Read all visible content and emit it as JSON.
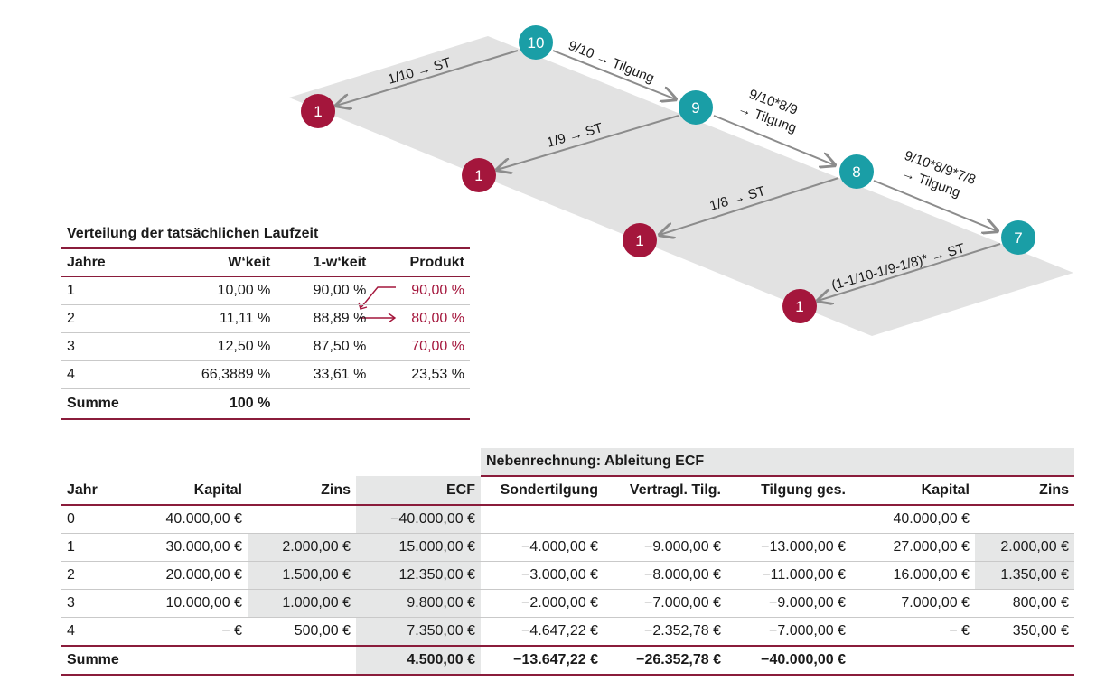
{
  "diagram": {
    "nodes": [
      {
        "label": "10",
        "kind": "teal"
      },
      {
        "label": "9",
        "kind": "teal"
      },
      {
        "label": "8",
        "kind": "teal"
      },
      {
        "label": "7",
        "kind": "teal"
      },
      {
        "label": "1",
        "kind": "red"
      },
      {
        "label": "1",
        "kind": "red"
      },
      {
        "label": "1",
        "kind": "red"
      },
      {
        "label": "1",
        "kind": "red"
      }
    ],
    "edges": [
      {
        "lines": [
          "1/10 → ST"
        ]
      },
      {
        "lines": [
          "9/10 → Tilgung"
        ]
      },
      {
        "lines": [
          "1/9 → ST"
        ]
      },
      {
        "lines": [
          "9/10*8/9",
          "→ Tilgung"
        ]
      },
      {
        "lines": [
          "1/8 → ST"
        ]
      },
      {
        "lines": [
          "9/10*8/9*7/8",
          "→ Tilgung"
        ]
      },
      {
        "lines": [
          "(1-1/10-1/9-1/8)* → ST"
        ]
      }
    ],
    "colors": {
      "teal": "#1a9ea6",
      "red": "#a4163c",
      "plane": "#e2e2e2",
      "arrow": "#8c8c8c"
    }
  },
  "distribution": {
    "title": "Verteilung der tatsächlichen Laufzeit",
    "headers": [
      "Jahre",
      "W‘keit",
      "1-w‘keit",
      "Produkt"
    ],
    "rows": [
      [
        "1",
        "10,00 %",
        "90,00 %",
        "90,00 %"
      ],
      [
        "2",
        "11,11 %",
        "88,89 %",
        "80,00 %"
      ],
      [
        "3",
        "12,50 %",
        "87,50 %",
        "70,00 %"
      ],
      [
        "4",
        "66,3889 %",
        "33,61 %",
        "23,53 %"
      ]
    ],
    "sum": {
      "label": "Summe",
      "value": "100 %"
    }
  },
  "cashflow": {
    "neben_title": "Nebenrechnung: Ableitung ECF",
    "headers": [
      "Jahr",
      "Kapital",
      "Zins",
      "ECF",
      "Sondertilgung",
      "Vertragl. Tilg.",
      "Tilgung ges.",
      "Kapital",
      "Zins"
    ],
    "rows": [
      [
        "0",
        "40.000,00 €",
        "",
        "−40.000,00 €",
        "",
        "",
        "",
        "40.000,00 €",
        ""
      ],
      [
        "1",
        "30.000,00 €",
        "2.000,00 €",
        "15.000,00 €",
        "−4.000,00 €",
        "−9.000,00 €",
        "−13.000,00 €",
        "27.000,00 €",
        "2.000,00 €"
      ],
      [
        "2",
        "20.000,00 €",
        "1.500,00 €",
        "12.350,00 €",
        "−3.000,00 €",
        "−8.000,00 €",
        "−11.000,00 €",
        "16.000,00 €",
        "1.350,00 €"
      ],
      [
        "3",
        "10.000,00 €",
        "1.000,00 €",
        "9.800,00 €",
        "−2.000,00 €",
        "−7.000,00 €",
        "−9.000,00 €",
        "7.000,00 €",
        "800,00 €"
      ],
      [
        "4",
        "− €",
        "500,00 €",
        "7.350,00 €",
        "−4.647,22 €",
        "−2.352,78 €",
        "−7.000,00 €",
        "− €",
        "350,00 €"
      ]
    ],
    "sum": [
      "Summe",
      "",
      "",
      "4.500,00 €",
      "−13.647,22 €",
      "−26.352,78 €",
      "−40.000,00 €",
      "",
      ""
    ]
  }
}
